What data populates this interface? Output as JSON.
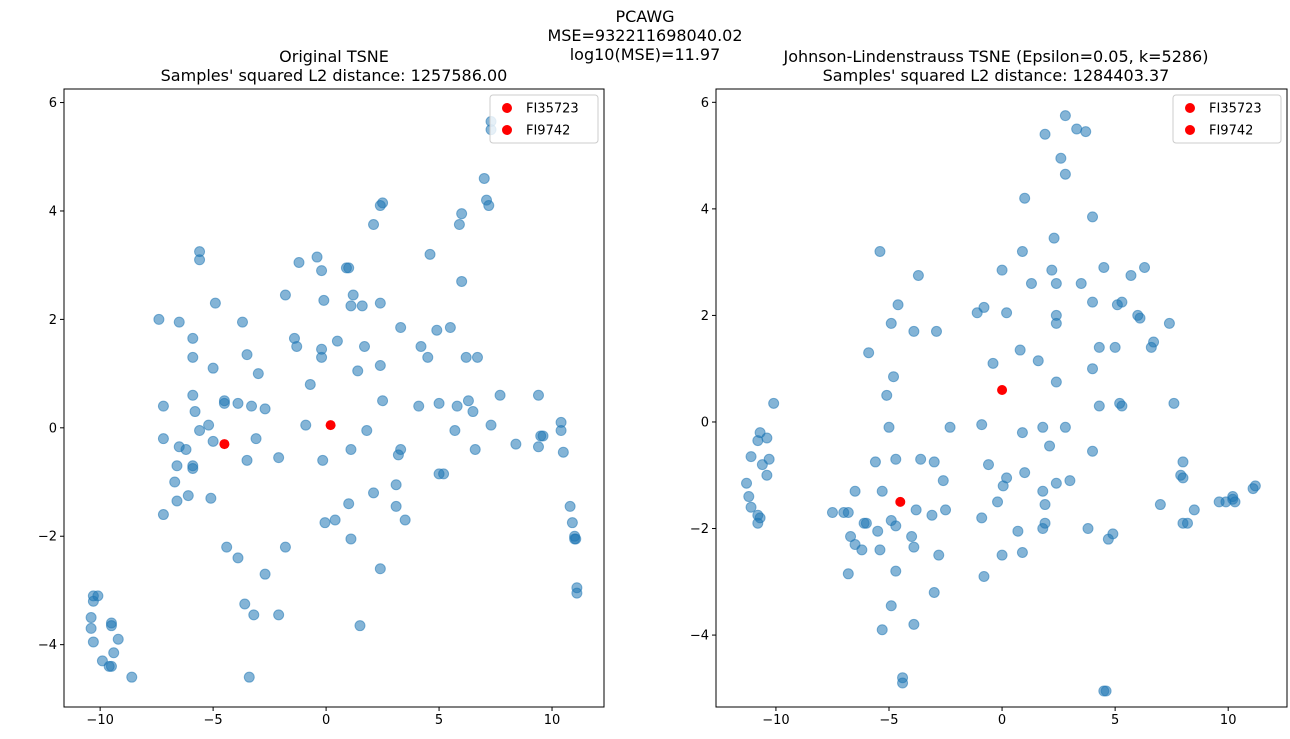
{
  "suptitle": {
    "line1": "PCAWG",
    "line2": "MSE=932211698040.02",
    "line3": "log10(MSE)=11.97"
  },
  "colors": {
    "points": "#1f77b4",
    "highlight": "#ff0000"
  },
  "chart_data": [
    {
      "type": "scatter",
      "title_line1": "Original TSNE",
      "title_line2": "Samples' squared L2 distance: 1257586.00",
      "xlabel": "",
      "ylabel": "",
      "xlim": [
        -11.6,
        12.3
      ],
      "ylim": [
        -5.15,
        6.25
      ],
      "xticks": [
        -10,
        -5,
        0,
        5,
        10
      ],
      "yticks": [
        -4,
        -2,
        0,
        2,
        4,
        6
      ],
      "xtick_labels": [
        "−10",
        "−5",
        "0",
        "5",
        "10"
      ],
      "ytick_labels": [
        "−4",
        "−2",
        "0",
        "2",
        "4",
        "6"
      ],
      "legend_position": "top-right",
      "legend": [
        {
          "name": "FI35723",
          "x": 0.2,
          "y": 0.05
        },
        {
          "name": "FI9742",
          "x": -4.5,
          "y": -0.3
        }
      ],
      "points": [
        [
          -10.4,
          -3.5
        ],
        [
          -10.4,
          -3.7
        ],
        [
          -10.3,
          -3.2
        ],
        [
          -10.3,
          -3.1
        ],
        [
          -10.1,
          -3.1
        ],
        [
          -10.3,
          -3.95
        ],
        [
          -9.9,
          -4.3
        ],
        [
          -9.5,
          -3.6
        ],
        [
          -9.5,
          -3.65
        ],
        [
          -9.5,
          -4.4
        ],
        [
          -9.4,
          -4.15
        ],
        [
          -9.2,
          -3.9
        ],
        [
          -9.6,
          -4.4
        ],
        [
          -8.6,
          -4.6
        ],
        [
          -7.4,
          2.0
        ],
        [
          -7.2,
          0.4
        ],
        [
          -7.2,
          -0.2
        ],
        [
          -7.2,
          -1.6
        ],
        [
          -6.7,
          -1.0
        ],
        [
          -6.6,
          -0.7
        ],
        [
          -6.5,
          -0.35
        ],
        [
          -6.6,
          -1.35
        ],
        [
          -6.5,
          1.95
        ],
        [
          -6.2,
          -0.4
        ],
        [
          -6.1,
          -1.25
        ],
        [
          -5.9,
          1.65
        ],
        [
          -5.9,
          1.3
        ],
        [
          -5.8,
          0.3
        ],
        [
          -5.9,
          0.6
        ],
        [
          -5.9,
          -0.75
        ],
        [
          -5.9,
          -0.7
        ],
        [
          -5.6,
          -0.05
        ],
        [
          -5.6,
          3.25
        ],
        [
          -5.6,
          3.1
        ],
        [
          -5.2,
          0.05
        ],
        [
          -5.1,
          -1.3
        ],
        [
          -5.0,
          1.1
        ],
        [
          -5.0,
          -0.25
        ],
        [
          -4.9,
          2.3
        ],
        [
          -4.5,
          0.5
        ],
        [
          -4.5,
          0.45
        ],
        [
          -4.4,
          -2.2
        ],
        [
          -3.9,
          0.45
        ],
        [
          -3.9,
          -2.4
        ],
        [
          -3.7,
          1.95
        ],
        [
          -3.5,
          1.35
        ],
        [
          -3.5,
          -0.6
        ],
        [
          -3.3,
          0.4
        ],
        [
          -3.1,
          -0.2
        ],
        [
          -3.2,
          -3.45
        ],
        [
          -3.6,
          -3.25
        ],
        [
          -3.4,
          -4.6
        ],
        [
          -3.0,
          1.0
        ],
        [
          -2.7,
          0.35
        ],
        [
          -2.7,
          -2.7
        ],
        [
          -2.1,
          -0.55
        ],
        [
          -2.1,
          -3.45
        ],
        [
          -1.8,
          2.45
        ],
        [
          -1.8,
          -2.2
        ],
        [
          -1.2,
          3.05
        ],
        [
          -1.4,
          1.65
        ],
        [
          -1.3,
          1.5
        ],
        [
          -0.9,
          0.05
        ],
        [
          -0.7,
          0.8
        ],
        [
          -0.4,
          3.15
        ],
        [
          -0.2,
          2.9
        ],
        [
          -0.2,
          1.3
        ],
        [
          -0.2,
          1.45
        ],
        [
          -0.1,
          2.35
        ],
        [
          -0.15,
          -0.6
        ],
        [
          -0.05,
          -1.75
        ],
        [
          0.4,
          -1.7
        ],
        [
          0.5,
          1.6
        ],
        [
          0.9,
          2.95
        ],
        [
          1.0,
          2.95
        ],
        [
          1.1,
          2.25
        ],
        [
          1.2,
          2.45
        ],
        [
          1.0,
          -1.4
        ],
        [
          1.1,
          -2.05
        ],
        [
          1.1,
          -0.4
        ],
        [
          1.4,
          1.05
        ],
        [
          1.6,
          2.25
        ],
        [
          1.7,
          1.5
        ],
        [
          1.5,
          -3.65
        ],
        [
          1.8,
          -0.05
        ],
        [
          2.1,
          3.75
        ],
        [
          2.1,
          -1.2
        ],
        [
          2.4,
          2.3
        ],
        [
          2.4,
          1.15
        ],
        [
          2.5,
          0.5
        ],
        [
          2.4,
          -2.6
        ],
        [
          2.5,
          4.15
        ],
        [
          2.4,
          4.1
        ],
        [
          3.1,
          -1.05
        ],
        [
          3.3,
          1.85
        ],
        [
          3.3,
          -0.4
        ],
        [
          3.2,
          -0.5
        ],
        [
          3.1,
          -1.45
        ],
        [
          3.5,
          -1.7
        ],
        [
          4.1,
          0.4
        ],
        [
          4.2,
          1.5
        ],
        [
          4.5,
          1.3
        ],
        [
          4.6,
          3.2
        ],
        [
          4.9,
          1.8
        ],
        [
          5.0,
          0.45
        ],
        [
          5.0,
          -0.85
        ],
        [
          5.2,
          -0.85
        ],
        [
          5.5,
          1.85
        ],
        [
          5.7,
          -0.05
        ],
        [
          5.8,
          0.4
        ],
        [
          5.9,
          3.75
        ],
        [
          6.0,
          3.95
        ],
        [
          6.0,
          2.7
        ],
        [
          6.2,
          1.3
        ],
        [
          6.3,
          0.5
        ],
        [
          6.5,
          0.3
        ],
        [
          6.7,
          1.3
        ],
        [
          6.6,
          -0.4
        ],
        [
          7.0,
          4.6
        ],
        [
          7.1,
          4.2
        ],
        [
          7.2,
          4.1
        ],
        [
          7.3,
          0.05
        ],
        [
          7.3,
          5.65
        ],
        [
          7.3,
          5.5
        ],
        [
          7.7,
          0.6
        ],
        [
          8.4,
          -0.3
        ],
        [
          9.4,
          0.6
        ],
        [
          9.4,
          -0.35
        ],
        [
          9.5,
          -0.15
        ],
        [
          9.6,
          -0.15
        ],
        [
          10.4,
          0.1
        ],
        [
          10.4,
          -0.05
        ],
        [
          10.5,
          -0.45
        ],
        [
          10.8,
          -1.45
        ],
        [
          10.9,
          -1.75
        ],
        [
          11.0,
          -2.0
        ],
        [
          11.05,
          -2.05
        ],
        [
          11.0,
          -2.05
        ],
        [
          11.1,
          -2.95
        ],
        [
          11.1,
          -3.05
        ]
      ]
    },
    {
      "type": "scatter",
      "title_line1": "Johnson-Lindenstrauss TSNE (Epsilon=0.05, k=5286)",
      "title_line2": "Samples' squared L2 distance: 1284403.37",
      "xlabel": "",
      "ylabel": "",
      "xlim": [
        -12.65,
        12.6
      ],
      "ylim": [
        -5.35,
        6.25
      ],
      "xticks": [
        -10,
        -5,
        0,
        5,
        10
      ],
      "yticks": [
        -4,
        -2,
        0,
        2,
        4,
        6
      ],
      "xtick_labels": [
        "−10",
        "−5",
        "0",
        "5",
        "10"
      ],
      "ytick_labels": [
        "−4",
        "−2",
        "0",
        "2",
        "4",
        "6"
      ],
      "legend_position": "top-right",
      "legend": [
        {
          "name": "FI35723",
          "x": -4.5,
          "y": -1.5
        },
        {
          "name": "FI9742",
          "x": 0.0,
          "y": 0.6
        }
      ],
      "points": [
        [
          -11.3,
          -1.15
        ],
        [
          -11.2,
          -1.4
        ],
        [
          -11.1,
          -1.6
        ],
        [
          -11.1,
          -0.65
        ],
        [
          -10.8,
          -0.35
        ],
        [
          -10.8,
          -1.75
        ],
        [
          -10.8,
          -1.9
        ],
        [
          -10.7,
          -0.2
        ],
        [
          -10.6,
          -0.8
        ],
        [
          -10.4,
          -0.3
        ],
        [
          -10.4,
          -1.0
        ],
        [
          -10.3,
          -0.7
        ],
        [
          -10.1,
          0.35
        ],
        [
          -10.7,
          -1.8
        ],
        [
          -7.5,
          -1.7
        ],
        [
          -7.0,
          -1.7
        ],
        [
          -6.8,
          -1.7
        ],
        [
          -6.8,
          -2.85
        ],
        [
          -6.7,
          -2.15
        ],
        [
          -6.5,
          -2.3
        ],
        [
          -6.5,
          -1.3
        ],
        [
          -6.2,
          -2.4
        ],
        [
          -6.1,
          -1.9
        ],
        [
          -6.0,
          -1.9
        ],
        [
          -5.9,
          1.3
        ],
        [
          -5.6,
          -0.75
        ],
        [
          -5.5,
          -2.05
        ],
        [
          -5.4,
          -2.4
        ],
        [
          -5.3,
          -3.9
        ],
        [
          -5.4,
          3.2
        ],
        [
          -5.3,
          -1.3
        ],
        [
          -5.1,
          0.5
        ],
        [
          -5.0,
          -0.1
        ],
        [
          -4.9,
          1.85
        ],
        [
          -4.9,
          -1.85
        ],
        [
          -4.9,
          -3.45
        ],
        [
          -4.8,
          0.85
        ],
        [
          -4.7,
          -0.7
        ],
        [
          -4.7,
          -1.95
        ],
        [
          -4.6,
          2.2
        ],
        [
          -4.7,
          -2.8
        ],
        [
          -4.4,
          -4.8
        ],
        [
          -4.4,
          -4.9
        ],
        [
          -4.0,
          -2.15
        ],
        [
          -3.9,
          -2.35
        ],
        [
          -3.9,
          -3.8
        ],
        [
          -3.9,
          1.7
        ],
        [
          -3.8,
          -1.65
        ],
        [
          -3.7,
          2.75
        ],
        [
          -3.6,
          -0.7
        ],
        [
          -3.1,
          -1.75
        ],
        [
          -3.0,
          -0.75
        ],
        [
          -2.9,
          1.7
        ],
        [
          -2.8,
          -2.5
        ],
        [
          -3.0,
          -3.2
        ],
        [
          -2.6,
          -1.1
        ],
        [
          -2.5,
          -1.65
        ],
        [
          -2.3,
          -0.1
        ],
        [
          -1.1,
          2.05
        ],
        [
          -0.9,
          -0.05
        ],
        [
          -0.9,
          -1.8
        ],
        [
          -0.8,
          2.15
        ],
        [
          -0.8,
          -2.9
        ],
        [
          -0.6,
          -0.8
        ],
        [
          -0.4,
          1.1
        ],
        [
          -0.2,
          -1.5
        ],
        [
          0.0,
          2.85
        ],
        [
          0.0,
          -2.5
        ],
        [
          0.05,
          -1.2
        ],
        [
          0.2,
          -1.05
        ],
        [
          0.2,
          2.05
        ],
        [
          0.7,
          -2.05
        ],
        [
          0.8,
          1.35
        ],
        [
          0.9,
          -0.2
        ],
        [
          0.9,
          3.2
        ],
        [
          0.9,
          -2.45
        ],
        [
          1.0,
          -0.95
        ],
        [
          1.0,
          4.2
        ],
        [
          1.3,
          2.6
        ],
        [
          1.6,
          1.15
        ],
        [
          1.8,
          -0.1
        ],
        [
          1.9,
          -1.55
        ],
        [
          1.8,
          -1.3
        ],
        [
          1.8,
          -2.0
        ],
        [
          1.9,
          -1.9
        ],
        [
          1.9,
          5.4
        ],
        [
          2.1,
          -0.45
        ],
        [
          2.2,
          2.85
        ],
        [
          2.3,
          3.45
        ],
        [
          2.4,
          0.75
        ],
        [
          2.4,
          2.0
        ],
        [
          2.4,
          1.85
        ],
        [
          2.4,
          2.6
        ],
        [
          2.4,
          -1.15
        ],
        [
          2.6,
          4.95
        ],
        [
          2.8,
          4.65
        ],
        [
          2.8,
          -0.1
        ],
        [
          2.8,
          5.75
        ],
        [
          3.0,
          -1.1
        ],
        [
          3.3,
          5.5
        ],
        [
          3.5,
          2.6
        ],
        [
          3.7,
          5.45
        ],
        [
          3.8,
          -2.0
        ],
        [
          4.0,
          1.0
        ],
        [
          4.0,
          -0.55
        ],
        [
          4.0,
          2.25
        ],
        [
          4.0,
          3.85
        ],
        [
          4.3,
          1.4
        ],
        [
          4.3,
          0.3
        ],
        [
          4.5,
          2.9
        ],
        [
          4.5,
          -5.05
        ],
        [
          4.6,
          -5.05
        ],
        [
          4.7,
          -2.2
        ],
        [
          4.9,
          -2.1
        ],
        [
          5.0,
          1.4
        ],
        [
          5.1,
          2.2
        ],
        [
          5.2,
          0.35
        ],
        [
          5.3,
          0.3
        ],
        [
          5.3,
          2.25
        ],
        [
          5.7,
          2.75
        ],
        [
          6.0,
          2.0
        ],
        [
          6.1,
          1.95
        ],
        [
          6.3,
          2.9
        ],
        [
          6.6,
          1.4
        ],
        [
          6.7,
          1.5
        ],
        [
          7.0,
          -1.55
        ],
        [
          7.4,
          1.85
        ],
        [
          7.6,
          0.35
        ],
        [
          7.9,
          -1.0
        ],
        [
          8.0,
          -1.05
        ],
        [
          8.0,
          -0.75
        ],
        [
          8.0,
          -1.9
        ],
        [
          8.2,
          -1.9
        ],
        [
          8.5,
          -1.65
        ],
        [
          9.6,
          -1.5
        ],
        [
          9.9,
          -1.5
        ],
        [
          10.2,
          -1.45
        ],
        [
          10.2,
          -1.4
        ],
        [
          10.3,
          -1.5
        ],
        [
          11.1,
          -1.25
        ],
        [
          11.2,
          -1.2
        ]
      ]
    }
  ]
}
